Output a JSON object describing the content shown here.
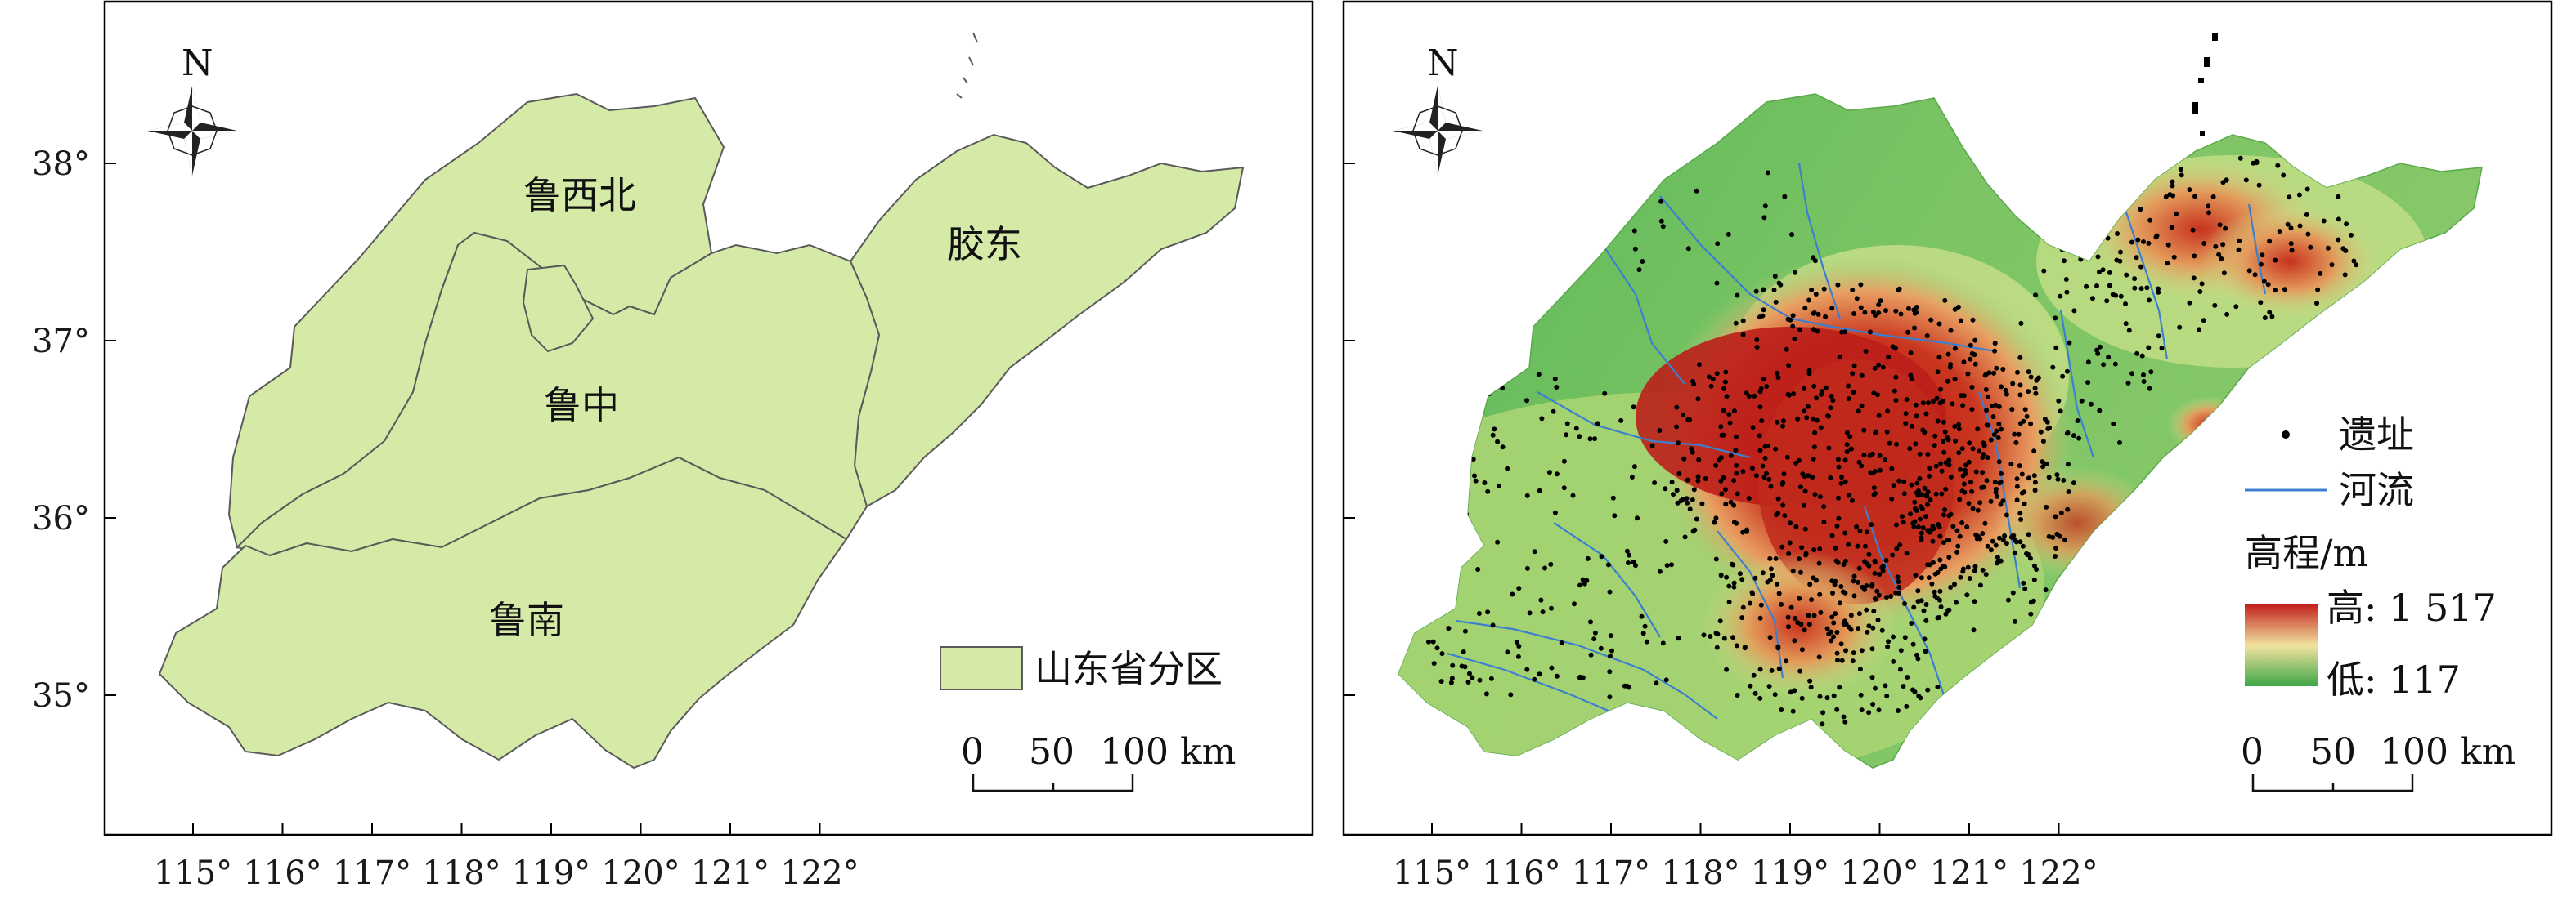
{
  "maps": {
    "left": {
      "north_label": "N",
      "regions": [
        {
          "id": "luxibei",
          "label": "鲁西北"
        },
        {
          "id": "jiaodong",
          "label": "胶东"
        },
        {
          "id": "luzhong",
          "label": "鲁中"
        },
        {
          "id": "lunan",
          "label": "鲁南"
        }
      ],
      "legend": {
        "swatch_color": "#d6eaa8",
        "label": "山东省分区"
      },
      "scale": {
        "t0": "0",
        "t1": "50",
        "t2": "100 km"
      }
    },
    "right": {
      "north_label": "N",
      "legend": {
        "site_label": "遗址",
        "river_label": "河流",
        "elevation_title": "高程/m",
        "high_label": "高: 1 517",
        "low_label": "低: 117"
      },
      "scale": {
        "t0": "0",
        "t1": "50",
        "t2": "100 km"
      }
    }
  },
  "axes": {
    "longitudes": [
      "115°",
      "116°",
      "117°",
      "118°",
      "119°",
      "120°",
      "121°",
      "122°"
    ],
    "latitudes": [
      "38°",
      "37°",
      "36°",
      "35°"
    ]
  },
  "colors": {
    "region_fill": "#d6eaa8",
    "elevation_low": "#3fa648",
    "elevation_mid": "#f2e3a0",
    "elevation_high": "#c0211c",
    "river": "#3c7fd0",
    "site": "#000000"
  }
}
